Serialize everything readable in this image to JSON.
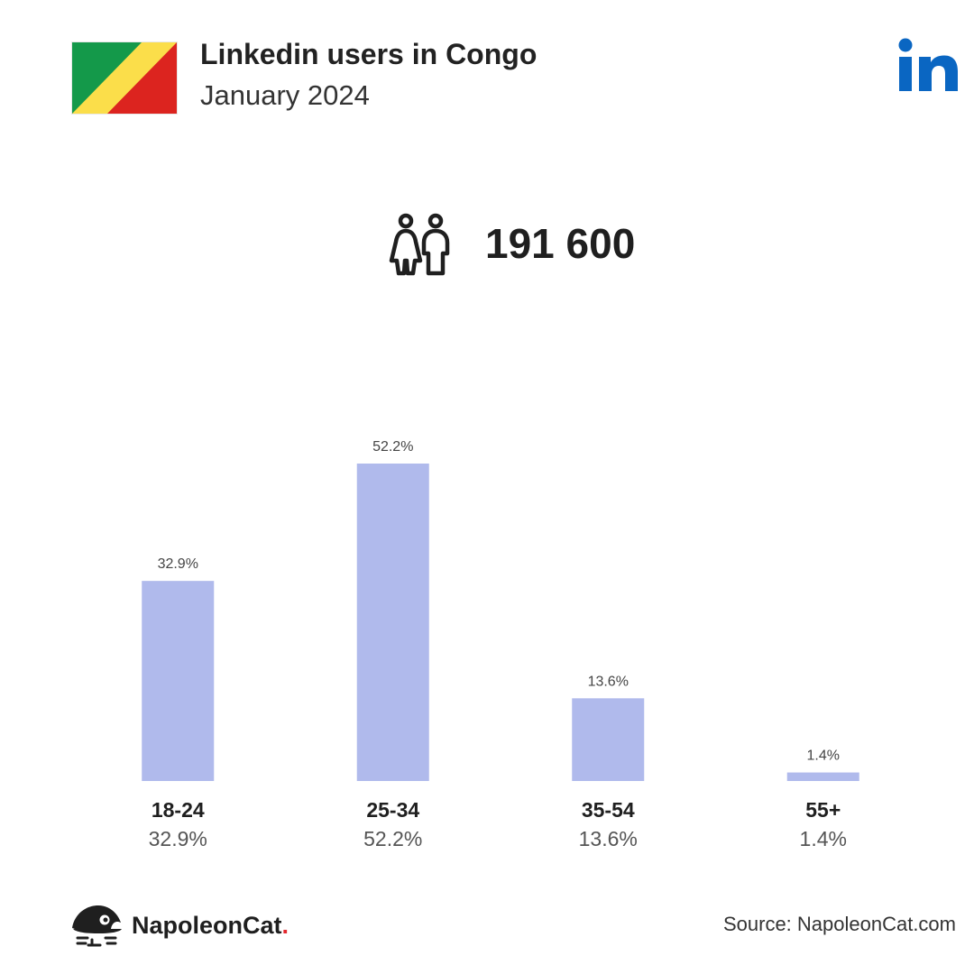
{
  "header": {
    "title": "Linkedin users in Congo",
    "subtitle": "January 2024"
  },
  "total": {
    "value": "191 600",
    "icon": "people-icon"
  },
  "icons": {
    "flag": "congo-flag-icon",
    "brand": "linkedin-logo-icon",
    "footer": "napoleoncat-logo-icon"
  },
  "colors": {
    "bar": "#b0baec",
    "linkedin_blue": "#0a66c2",
    "flag_green": "#14994a",
    "flag_yellow": "#fbde4a",
    "flag_red": "#dc241f",
    "text_dark": "#1f1f1f",
    "text_muted": "#555555",
    "logo_dot": "#e3262d"
  },
  "chart_data": {
    "type": "bar",
    "categories": [
      "18-24",
      "25-34",
      "35-54",
      "55+"
    ],
    "values": [
      32.9,
      52.2,
      13.6,
      1.4
    ],
    "value_labels": [
      "32.9%",
      "52.2%",
      "13.6%",
      "1.4%"
    ],
    "category_sublabels": [
      "32.9%",
      "52.2%",
      "13.6%",
      "1.4%"
    ],
    "ylim": [
      0,
      52.2
    ],
    "grid": false
  },
  "footer": {
    "logo_name": "NapoleonCat",
    "logo_dot": ".",
    "source": "Source: NapoleonCat.com"
  }
}
